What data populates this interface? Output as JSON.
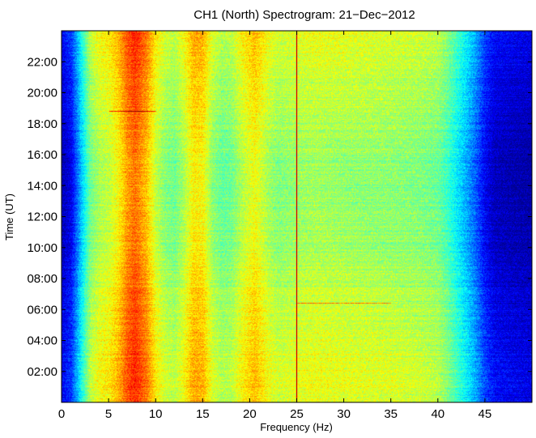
{
  "chart_data": {
    "type": "heatmap",
    "title": "CH1 (North) Spectrogram: 21−Dec−2012",
    "xlabel": "Frequency (Hz)",
    "ylabel": "Time (UT)",
    "xlim": [
      0,
      50
    ],
    "ylim": [
      0,
      24
    ],
    "x_ticks": [
      0,
      5,
      10,
      15,
      20,
      25,
      30,
      35,
      40,
      45
    ],
    "x_tick_labels": [
      "0",
      "5",
      "10",
      "15",
      "20",
      "25",
      "30",
      "35",
      "40",
      "45"
    ],
    "y_ticks": [
      2,
      4,
      6,
      8,
      10,
      12,
      14,
      16,
      18,
      20,
      22
    ],
    "y_tick_labels": [
      "02:00",
      "04:00",
      "06:00",
      "08:00",
      "10:00",
      "12:00",
      "14:00",
      "16:00",
      "18:00",
      "20:00",
      "22:00"
    ],
    "colormap": "jet",
    "colormap_stops": [
      "#00008f",
      "#0000ff",
      "#0080ff",
      "#00ffff",
      "#80ff80",
      "#ffff00",
      "#ff8000",
      "#ff0000",
      "#800000"
    ],
    "intensity_profile": {
      "description_units": "relative intensity 0-1 by frequency (Hz)",
      "frequency_hz": [
        0,
        1,
        2,
        3,
        4,
        5,
        6,
        7,
        7.8,
        9,
        10,
        11,
        12,
        13,
        14,
        15,
        16,
        17,
        18,
        19,
        20.5,
        22,
        23,
        24,
        25,
        27,
        30,
        35,
        38,
        40,
        41,
        42,
        43,
        44,
        45,
        46,
        48,
        50
      ],
      "intensity": [
        0.08,
        0.14,
        0.34,
        0.52,
        0.58,
        0.6,
        0.66,
        0.76,
        0.8,
        0.72,
        0.6,
        0.54,
        0.52,
        0.58,
        0.67,
        0.66,
        0.55,
        0.51,
        0.52,
        0.58,
        0.65,
        0.57,
        0.54,
        0.55,
        0.56,
        0.57,
        0.56,
        0.55,
        0.54,
        0.52,
        0.47,
        0.4,
        0.33,
        0.25,
        0.15,
        0.09,
        0.07,
        0.06
      ]
    },
    "narrowband_lines": [
      {
        "frequency_hz": 25,
        "color": "#d40000"
      }
    ],
    "transient_events": [
      {
        "time_ut": "18:48",
        "frequency_range_hz": [
          5,
          10
        ]
      },
      {
        "time_ut": "06:25",
        "frequency_range_hz": [
          25,
          35
        ]
      }
    ],
    "grid": false,
    "legend": "none"
  }
}
